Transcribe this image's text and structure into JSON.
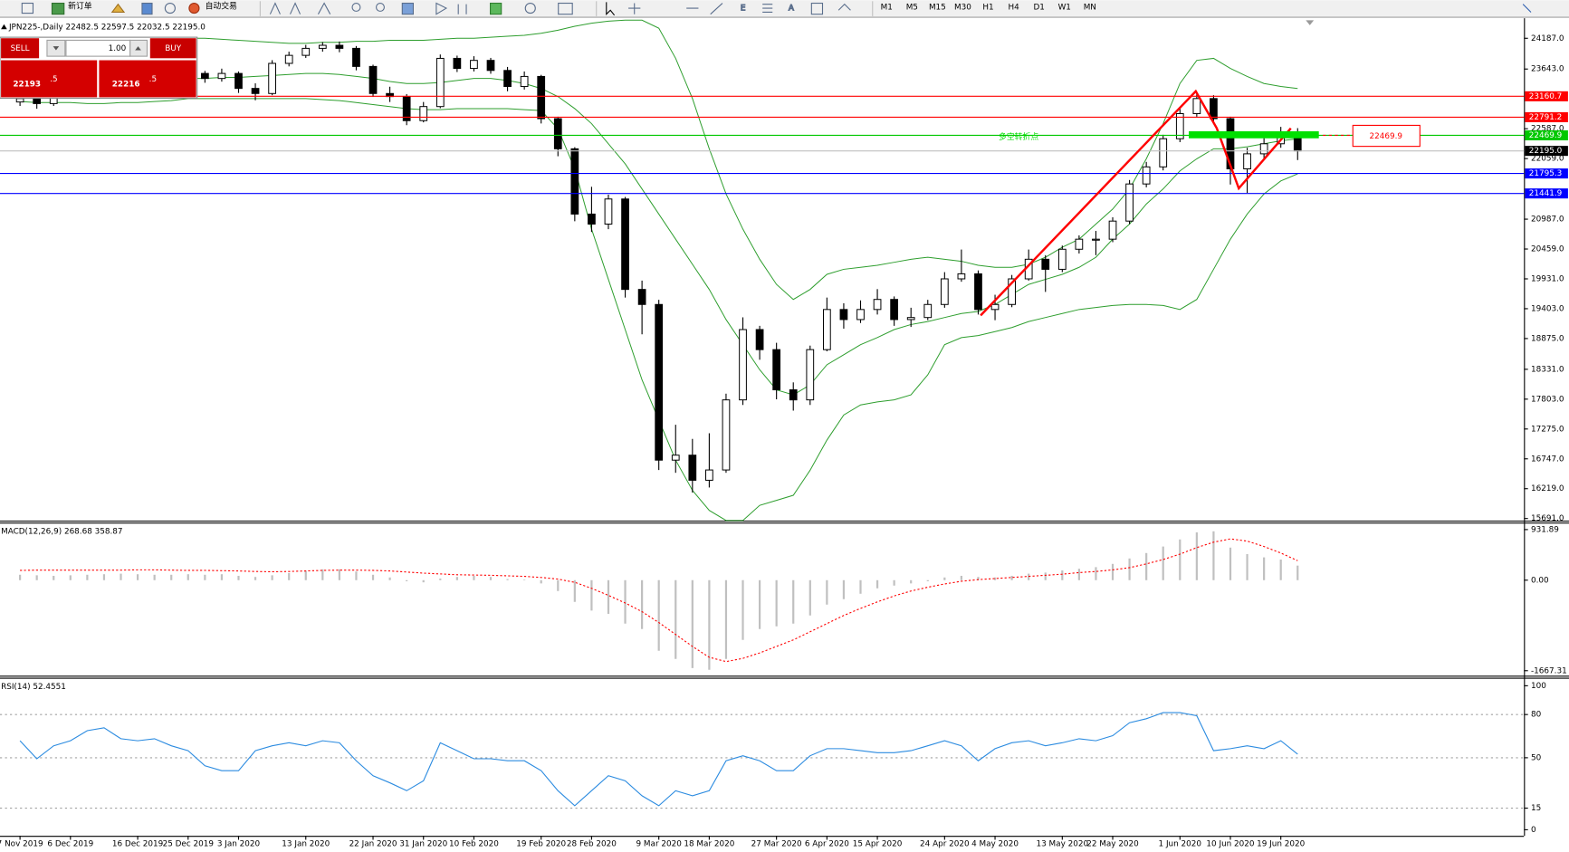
{
  "toolbar": {
    "buttons": [
      "新订单",
      "自动交易"
    ],
    "timeframes": [
      "M1",
      "M5",
      "M15",
      "M30",
      "H1",
      "H4",
      "D1",
      "W1",
      "MN"
    ]
  },
  "trade_panel": {
    "sell": "SELL",
    "buy": "BUY",
    "lots": "1.00",
    "bid_big": "22193",
    "bid_small": ".5",
    "ask_big": "22216",
    "ask_small": ".5"
  },
  "chart_data": [
    {
      "type": "candlestick",
      "title": "JPN225-,Daily  22482.5 22597.5 22032.5 22195.0",
      "color": "#000000",
      "open": [
        23060,
        23121,
        23032,
        23210,
        23299,
        23387,
        23476,
        23565,
        23512,
        23441,
        23512,
        23565,
        23476,
        23565,
        23300,
        23210,
        23743,
        23885,
        24009,
        24063,
        24009,
        23689,
        23210,
        23156,
        22730,
        22979,
        23832,
        23654,
        23796,
        23618,
        23334,
        23512,
        22765,
        22232,
        21077,
        20900,
        21344,
        19744,
        19478,
        16724,
        16812,
        16368,
        16550,
        17790,
        19034,
        18679,
        17968,
        17790,
        18679,
        19389,
        19211,
        19389,
        19567,
        19211,
        19247,
        19478,
        19931,
        20020,
        19389,
        19478,
        19931,
        20278,
        20100,
        20455,
        20633,
        20633,
        20953,
        21610,
        21912,
        22410,
        22854,
        23121,
        22765,
        21877,
        22143,
        22321,
        22482.5
      ],
      "high": [
        23230,
        23180,
        23290,
        23380,
        23460,
        23560,
        23640,
        23620,
        23570,
        23590,
        23640,
        23610,
        23650,
        23600,
        23390,
        23800,
        23950,
        24070,
        24120,
        24130,
        24050,
        23720,
        23330,
        23200,
        23060,
        23900,
        23880,
        23870,
        23840,
        23680,
        23600,
        23540,
        22800,
        22260,
        21560,
        21420,
        21380,
        19900,
        19560,
        17350,
        17100,
        17200,
        17900,
        19250,
        19100,
        18800,
        18100,
        18750,
        19600,
        19500,
        19550,
        19750,
        19620,
        19420,
        19560,
        20050,
        20450,
        20080,
        19650,
        20000,
        20450,
        20350,
        20520,
        20700,
        20780,
        21020,
        21680,
        22000,
        22480,
        22950,
        23200,
        23180,
        22800,
        22250,
        22420,
        22620,
        22597.5
      ],
      "low": [
        22990,
        22940,
        22990,
        23150,
        23240,
        23330,
        23420,
        23440,
        23380,
        23390,
        23460,
        23400,
        23420,
        23220,
        23090,
        23180,
        23690,
        23840,
        23950,
        23940,
        23620,
        23150,
        23060,
        22650,
        22700,
        22950,
        23590,
        23600,
        23560,
        23250,
        23280,
        22680,
        22100,
        20950,
        20760,
        20810,
        19600,
        18950,
        16550,
        16500,
        16150,
        16240,
        16500,
        17700,
        18500,
        17800,
        17600,
        17700,
        18650,
        19050,
        19150,
        19300,
        19100,
        19080,
        19200,
        19420,
        19880,
        19300,
        19200,
        19430,
        19900,
        19700,
        20050,
        20380,
        20350,
        20580,
        20900,
        21550,
        21850,
        22350,
        22800,
        22680,
        21600,
        21450,
        22050,
        22250,
        22032.5
      ],
      "close": [
        23121,
        23032,
        23210,
        23299,
        23387,
        23476,
        23565,
        23512,
        23441,
        23512,
        23565,
        23476,
        23565,
        23300,
        23210,
        23743,
        23885,
        24009,
        24063,
        24009,
        23689,
        23210,
        23156,
        22730,
        22979,
        23832,
        23654,
        23796,
        23618,
        23334,
        23512,
        22765,
        22232,
        21077,
        20900,
        21344,
        19744,
        19478,
        16724,
        16812,
        16368,
        16550,
        17790,
        19034,
        18679,
        17968,
        17790,
        18679,
        19389,
        19211,
        19389,
        19567,
        19211,
        19247,
        19478,
        19931,
        20020,
        19389,
        19478,
        19931,
        20278,
        20100,
        20455,
        20633,
        20633,
        20953,
        21610,
        21912,
        22410,
        22854,
        23121,
        22765,
        21877,
        22143,
        22321,
        22482,
        22195
      ],
      "overlays": [
        {
          "color": "#2e9e2e",
          "values": [
            24098,
            24116,
            24134,
            24151,
            24151,
            24169,
            24169,
            24169,
            24169,
            24187,
            24187,
            24187,
            24169,
            24151,
            24134,
            24116,
            24098,
            24098,
            24116,
            24116,
            24134,
            24134,
            24151,
            24151,
            24151,
            24169,
            24187,
            24187,
            24205,
            24223,
            24240,
            24276,
            24329,
            24400,
            24454,
            24489,
            24507,
            24507,
            24365,
            23832,
            23121,
            22232,
            21433,
            20811,
            20278,
            19833,
            19567,
            19744,
            20011,
            20100,
            20135,
            20171,
            20224,
            20278,
            20313,
            20278,
            20242,
            20171,
            20135,
            20135,
            20189,
            20313,
            20491,
            20633,
            20900,
            21166,
            21522,
            22055,
            22677,
            23387,
            23796,
            23832,
            23654,
            23512,
            23387,
            23334,
            23299
          ]
        },
        {
          "color": "#2e9e2e",
          "values": [
            23565,
            23565,
            23547,
            23529,
            23512,
            23512,
            23494,
            23494,
            23476,
            23476,
            23476,
            23476,
            23494,
            23494,
            23512,
            23529,
            23547,
            23565,
            23565,
            23547,
            23512,
            23476,
            23423,
            23387,
            23387,
            23405,
            23441,
            23476,
            23476,
            23441,
            23387,
            23299,
            23156,
            22943,
            22677,
            22321,
            21966,
            21522,
            21077,
            20633,
            20189,
            19744,
            19211,
            18767,
            18323,
            17968,
            17879,
            18056,
            18412,
            18589,
            18767,
            18892,
            19034,
            19123,
            19176,
            19247,
            19318,
            19354,
            19478,
            19656,
            19833,
            19922,
            20011,
            20135,
            20313,
            20633,
            20900,
            21255,
            21522,
            21841,
            22055,
            22232,
            22232,
            22268,
            22321,
            22374,
            22410
          ]
        },
        {
          "color": "#2e9e2e",
          "values": [
            23068,
            23050,
            23050,
            23050,
            23032,
            23032,
            23050,
            23050,
            23068,
            23085,
            23121,
            23121,
            23121,
            23121,
            23121,
            23121,
            23121,
            23121,
            23103,
            23085,
            23050,
            23014,
            22979,
            22943,
            22925,
            22925,
            22943,
            22943,
            22943,
            22943,
            22925,
            22908,
            22588,
            21877,
            20811,
            19922,
            19034,
            18145,
            17435,
            16724,
            16190,
            15835,
            15657,
            15657,
            15924,
            16013,
            16102,
            16546,
            17079,
            17523,
            17701,
            17754,
            17790,
            17879,
            18234,
            18767,
            18892,
            18927,
            18998,
            19070,
            19176,
            19247,
            19318,
            19389,
            19425,
            19460,
            19478,
            19478,
            19460,
            19389,
            19567,
            20100,
            20633,
            21077,
            21433,
            21664,
            21788
          ]
        }
      ],
      "levels": [
        {
          "value": 23160.7,
          "color": "#ff0000"
        },
        {
          "value": 22791.2,
          "color": "#ff0000"
        },
        {
          "value": 22469.9,
          "color": "#00c800"
        },
        {
          "value": 22195,
          "label": "22195.0",
          "color": "#000000"
        },
        {
          "value": 21795.3,
          "color": "#0000ff"
        },
        {
          "value": 21441.9,
          "color": "#0000ff"
        }
      ],
      "annotations": [
        {
          "text": "多空转折点",
          "color": "#00dd00"
        },
        {
          "value": 22469.9,
          "color": "#ff0000"
        }
      ],
      "ylim": [
        15655,
        24542
      ],
      "yticks": [
        {
          "value": 24187,
          "label": "24187.0"
        },
        {
          "value": 23643,
          "label": "23643.0"
        },
        {
          "value": 22587,
          "label": "22587.0"
        },
        {
          "value": 22059,
          "label": "22059.0"
        },
        {
          "value": 20987,
          "label": "20987.0"
        },
        {
          "value": 20459,
          "label": "20459.0"
        },
        {
          "value": 19931,
          "label": "19931.0"
        },
        {
          "value": 19403,
          "label": "19403.0"
        },
        {
          "value": 18875,
          "label": "18875.0"
        },
        {
          "value": 18331,
          "label": "18331.0"
        },
        {
          "value": 17803,
          "label": "17803.0"
        },
        {
          "value": 17275,
          "label": "17275.0"
        },
        {
          "value": 16747,
          "label": "16747.0"
        },
        {
          "value": 16219,
          "label": "16219.0"
        },
        {
          "value": 15691,
          "label": "15691.0"
        }
      ]
    },
    {
      "type": "macd",
      "title": "MACD(12,26,9) 268.68 358.87",
      "color": "#c0c0c0",
      "signal_color": "#ff0000",
      "values": [
        100,
        90,
        80,
        90,
        100,
        110,
        120,
        110,
        100,
        100,
        110,
        100,
        110,
        80,
        60,
        90,
        130,
        170,
        200,
        200,
        160,
        100,
        50,
        -20,
        -40,
        30,
        60,
        80,
        60,
        20,
        10,
        -60,
        -200,
        -400,
        -560,
        -620,
        -800,
        -900,
        -1300,
        -1450,
        -1620,
        -1650,
        -1450,
        -1100,
        -900,
        -850,
        -800,
        -650,
        -450,
        -350,
        -250,
        -150,
        -100,
        -60,
        -20,
        50,
        80,
        60,
        50,
        80,
        120,
        140,
        180,
        210,
        240,
        300,
        400,
        500,
        620,
        750,
        880,
        900,
        600,
        480,
        420,
        380,
        268.68
      ],
      "signal": [
        180,
        185,
        185,
        185,
        185,
        185,
        185,
        190,
        190,
        185,
        180,
        180,
        175,
        170,
        160,
        155,
        160,
        170,
        180,
        185,
        185,
        180,
        170,
        150,
        130,
        115,
        100,
        95,
        90,
        80,
        70,
        50,
        20,
        -40,
        -150,
        -280,
        -420,
        -580,
        -780,
        -1000,
        -1220,
        -1420,
        -1500,
        -1440,
        -1340,
        -1220,
        -1100,
        -950,
        -800,
        -650,
        -520,
        -400,
        -290,
        -200,
        -130,
        -70,
        -20,
        10,
        30,
        50,
        70,
        90,
        110,
        140,
        160,
        190,
        230,
        300,
        380,
        480,
        600,
        700,
        760,
        720,
        620,
        500,
        358.87
      ],
      "ylim": [
        -1759,
        1061
      ],
      "yticks": [
        931.89,
        {
          "value": 0,
          "label": "0.00"
        },
        -1667.31
      ]
    },
    {
      "type": "line",
      "title": "RSI(14) 52.4551",
      "color": "#2b8be0",
      "categories": [
        "7 Nov 2019",
        null,
        null,
        "6 Dec 2019",
        null,
        null,
        null,
        "16 Dec 2019",
        null,
        null,
        "25 Dec 2019",
        null,
        null,
        "3 Jan 2020",
        null,
        null,
        null,
        "13 Jan 2020",
        null,
        null,
        null,
        "22 Jan 2020",
        null,
        null,
        "31 Jan 2020",
        null,
        null,
        "10 Feb 2020",
        null,
        null,
        null,
        "19 Feb 2020",
        null,
        null,
        "28 Feb 2020",
        null,
        null,
        null,
        "9 Mar 2020",
        null,
        null,
        "18 Mar 2020",
        null,
        null,
        null,
        "27 Mar 2020",
        null,
        null,
        "6 Apr 2020",
        null,
        null,
        "15 Apr 2020",
        null,
        null,
        null,
        "24 Apr 2020",
        null,
        null,
        "4 May 2020",
        null,
        null,
        null,
        "13 May 2020",
        null,
        null,
        "22 May 2020",
        null,
        null,
        null,
        "1 Jun 2020",
        null,
        null,
        "10 Jun 2020",
        null,
        null,
        "19 Jun 2020",
        null
      ],
      "values": [
        61.8,
        49.3,
        58.3,
        61.8,
        68.8,
        70.8,
        63.2,
        61.8,
        63.2,
        58.3,
        54.9,
        44.4,
        41.0,
        41.0,
        54.9,
        58.3,
        60.4,
        58.3,
        61.8,
        60.4,
        47.9,
        37.5,
        32.6,
        27.1,
        34.0,
        60.4,
        54.9,
        49.3,
        49.3,
        47.9,
        47.9,
        41.0,
        27.1,
        16.7,
        27.1,
        37.5,
        34.0,
        23.6,
        16.7,
        27.1,
        23.6,
        27.1,
        47.9,
        51.4,
        47.9,
        41.0,
        41.0,
        51.4,
        56.3,
        56.3,
        54.9,
        53.5,
        53.5,
        54.9,
        58.3,
        61.8,
        58.3,
        47.9,
        56.3,
        60.4,
        61.8,
        58.3,
        60.4,
        63.2,
        61.8,
        65.3,
        74.3,
        77.1,
        81.3,
        81.3,
        79.2,
        54.9,
        56.3,
        58.3,
        56.3,
        61.8,
        52.4551
      ],
      "levels": [
        80,
        50,
        15
      ],
      "ylim": [
        -4.2,
        105.6
      ],
      "yticks": [
        100,
        80,
        50,
        15,
        0
      ]
    }
  ]
}
